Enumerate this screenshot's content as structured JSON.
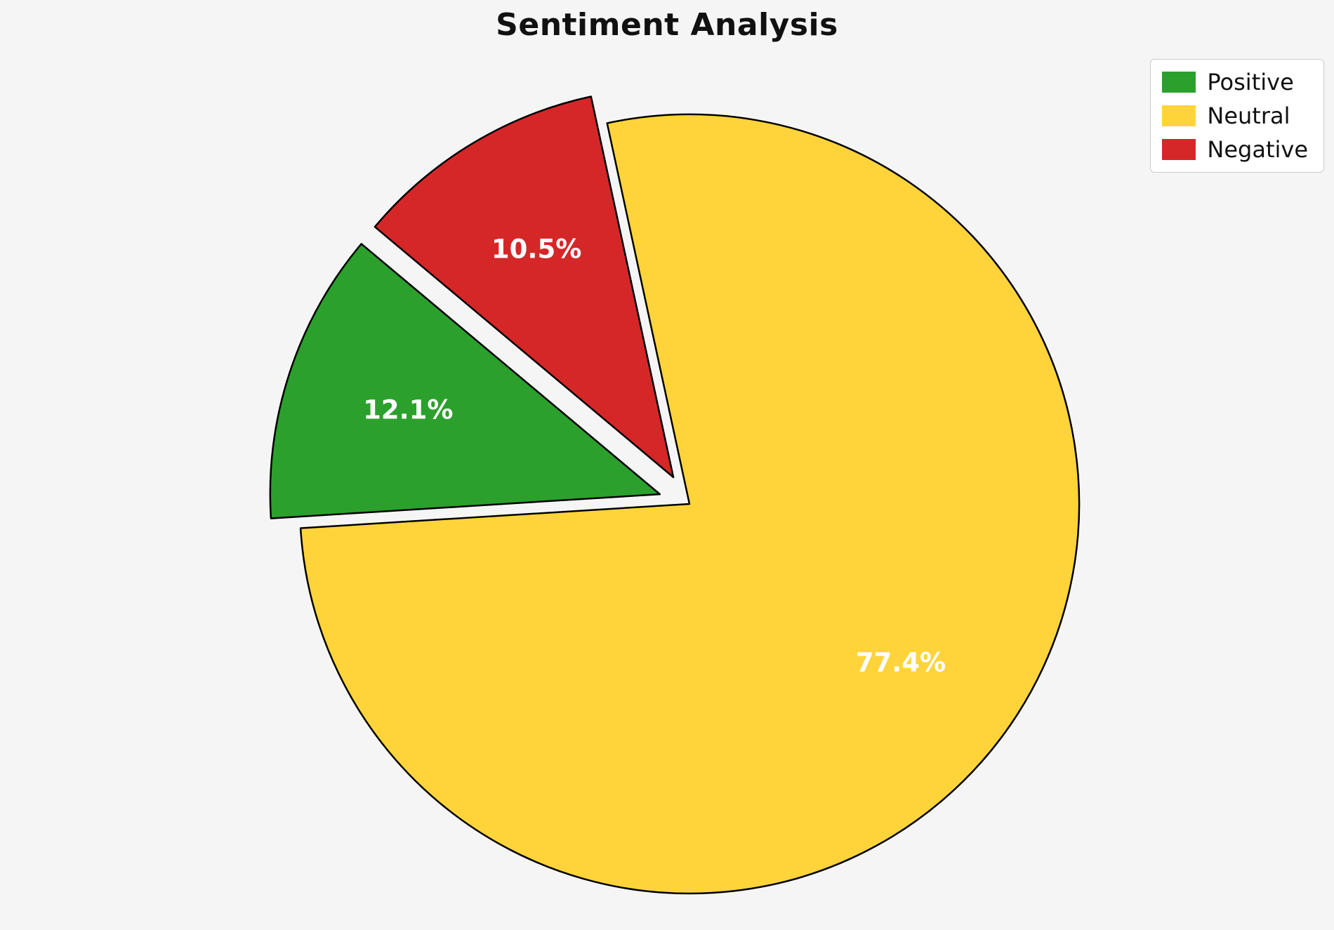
{
  "chart_data": {
    "type": "pie",
    "title": "Sentiment Analysis",
    "categories": [
      "Positive",
      "Neutral",
      "Negative"
    ],
    "values": [
      12.1,
      77.4,
      10.5
    ],
    "labels": [
      "12.1%",
      "77.4%",
      "10.5%"
    ],
    "colors": [
      "#2ca02c",
      "#ffd43b",
      "#d62728"
    ],
    "label_color": "#ffffff",
    "edge_color": "#000000",
    "background": "#f5f5f5",
    "start_angle": 140,
    "direction": "counterclockwise",
    "explode": [
      0.08,
      0,
      0.08
    ],
    "label_distance": 0.68,
    "legend_position": "upper right",
    "legend_entries": [
      "Positive",
      "Neutral",
      "Negative"
    ]
  }
}
